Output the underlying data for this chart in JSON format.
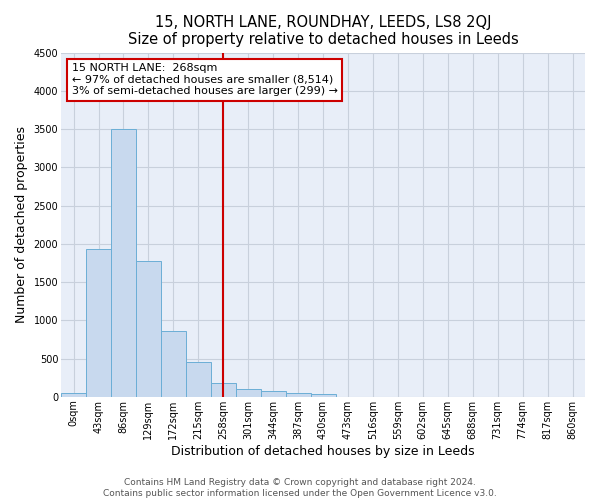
{
  "title": "15, NORTH LANE, ROUNDHAY, LEEDS, LS8 2QJ",
  "subtitle": "Size of property relative to detached houses in Leeds",
  "xlabel": "Distribution of detached houses by size in Leeds",
  "ylabel": "Number of detached properties",
  "bar_labels": [
    "0sqm",
    "43sqm",
    "86sqm",
    "129sqm",
    "172sqm",
    "215sqm",
    "258sqm",
    "301sqm",
    "344sqm",
    "387sqm",
    "430sqm",
    "473sqm",
    "516sqm",
    "559sqm",
    "602sqm",
    "645sqm",
    "688sqm",
    "731sqm",
    "774sqm",
    "817sqm",
    "860sqm"
  ],
  "bar_values": [
    50,
    1930,
    3500,
    1775,
    860,
    460,
    175,
    100,
    80,
    50,
    40,
    0,
    0,
    0,
    0,
    0,
    0,
    0,
    0,
    0,
    0
  ],
  "bar_color": "#c8d9ee",
  "bar_edgecolor": "#6baed6",
  "vline_x_index": 6,
  "vline_color": "#cc0000",
  "annotation_title": "15 NORTH LANE:  268sqm",
  "annotation_line1": "← 97% of detached houses are smaller (8,514)",
  "annotation_line2": "3% of semi-detached houses are larger (299) →",
  "annotation_box_color": "white",
  "annotation_box_edgecolor": "#cc0000",
  "ylim": [
    0,
    4500
  ],
  "yticks": [
    0,
    500,
    1000,
    1500,
    2000,
    2500,
    3000,
    3500,
    4000,
    4500
  ],
  "footer_line1": "Contains HM Land Registry data © Crown copyright and database right 2024.",
  "footer_line2": "Contains public sector information licensed under the Open Government Licence v3.0.",
  "plot_bg_color": "#e8eef8",
  "fig_bg_color": "#ffffff",
  "grid_color": "#c8d0dc",
  "title_fontsize": 10.5,
  "axis_label_fontsize": 9,
  "tick_fontsize": 7,
  "footer_fontsize": 6.5,
  "annotation_fontsize": 8
}
